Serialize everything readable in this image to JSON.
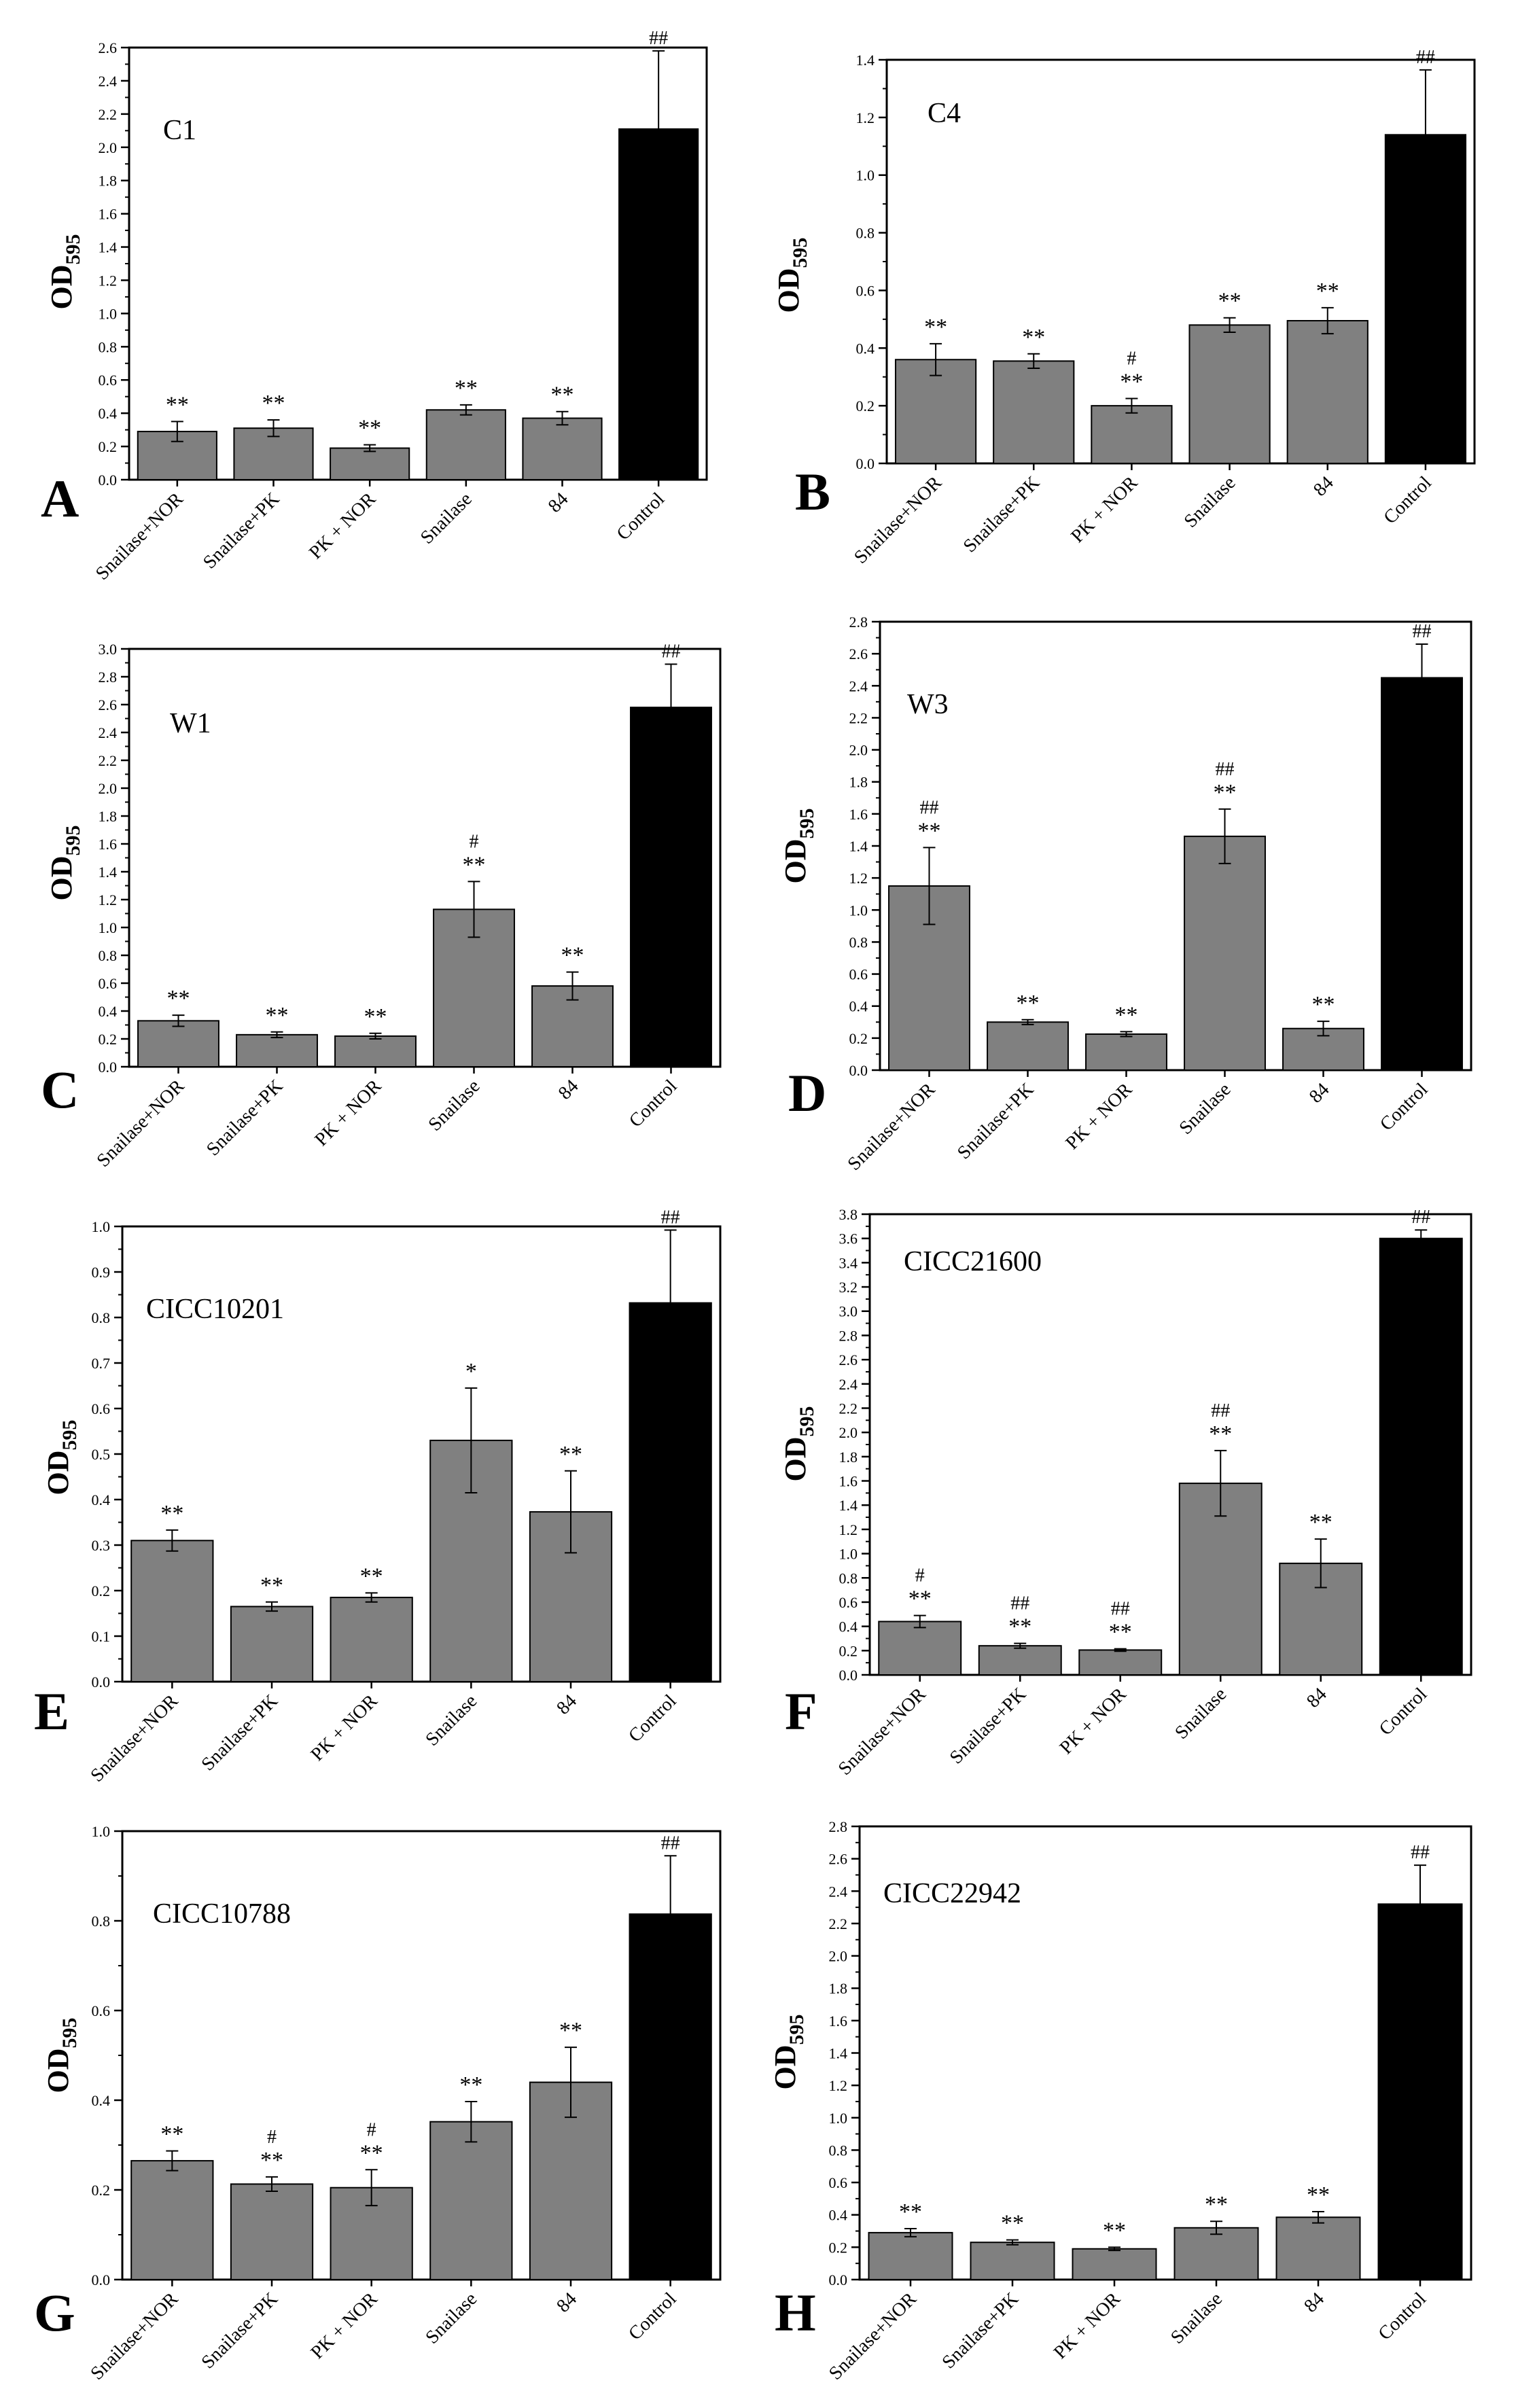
{
  "colors": {
    "treatment": "#808080",
    "control": "#000000",
    "axis": "#000000",
    "background": "#ffffff"
  },
  "chart_data": [
    {
      "panel": "A",
      "type": "bar",
      "title": "C1",
      "ylabel": "OD",
      "ylabel_sub": "595",
      "categories": [
        "Snailase+NOR",
        "Snailase+PK",
        "PK + NOR",
        "Snailase",
        "84",
        "Control"
      ],
      "values": [
        0.29,
        0.31,
        0.19,
        0.42,
        0.37,
        2.11
      ],
      "errors": [
        0.06,
        0.05,
        0.02,
        0.03,
        0.04,
        0.47
      ],
      "sig_upper": [
        "",
        "",
        "",
        "",
        "",
        "##"
      ],
      "sig_lower": [
        "**",
        "**",
        "**",
        "**",
        "**",
        ""
      ],
      "ylim": [
        0,
        2.6
      ],
      "ytick_step": 0.2,
      "ytick_decimals": 1
    },
    {
      "panel": "B",
      "type": "bar",
      "title": "C4",
      "ylabel": "OD",
      "ylabel_sub": "595",
      "categories": [
        "Snailase+NOR",
        "Snailase+PK",
        "PK + NOR",
        "Snailase",
        "84",
        "Control"
      ],
      "values": [
        0.36,
        0.355,
        0.2,
        0.48,
        0.495,
        1.14
      ],
      "errors": [
        0.055,
        0.025,
        0.025,
        0.025,
        0.045,
        0.225
      ],
      "sig_upper": [
        "",
        "",
        "#",
        "",
        "",
        "##"
      ],
      "sig_lower": [
        "**",
        "**",
        "**",
        "**",
        "**",
        ""
      ],
      "ylim": [
        0,
        1.4
      ],
      "ytick_step": 0.2,
      "ytick_decimals": 1
    },
    {
      "panel": "C",
      "type": "bar",
      "title": "W1",
      "ylabel": "OD",
      "ylabel_sub": "595",
      "categories": [
        "Snailase+NOR",
        "Snailase+PK",
        "PK + NOR",
        "Snailase",
        "84",
        "Control"
      ],
      "values": [
        0.33,
        0.23,
        0.22,
        1.13,
        0.58,
        2.58
      ],
      "errors": [
        0.04,
        0.02,
        0.02,
        0.2,
        0.1,
        0.31
      ],
      "sig_upper": [
        "",
        "",
        "",
        "#",
        "",
        "##"
      ],
      "sig_lower": [
        "**",
        "**",
        "**",
        "**",
        "**",
        ""
      ],
      "ylim": [
        0,
        3.0
      ],
      "ytick_step": 0.2,
      "ytick_decimals": 1
    },
    {
      "panel": "D",
      "type": "bar",
      "title": "W3",
      "ylabel": "OD",
      "ylabel_sub": "595",
      "categories": [
        "Snailase+NOR",
        "Snailase+PK",
        "PK + NOR",
        "Snailase",
        "84",
        "Control"
      ],
      "values": [
        1.15,
        0.3,
        0.225,
        1.46,
        0.26,
        2.45
      ],
      "errors": [
        0.24,
        0.015,
        0.015,
        0.17,
        0.045,
        0.21
      ],
      "sig_upper": [
        "##",
        "",
        "",
        "##",
        "",
        "##"
      ],
      "sig_lower": [
        "**",
        "**",
        "**",
        "**",
        "**",
        ""
      ],
      "ylim": [
        0,
        2.8
      ],
      "ytick_step": 0.2,
      "ytick_decimals": 1
    },
    {
      "panel": "E",
      "type": "bar",
      "title": "CICC10201",
      "ylabel": "OD",
      "ylabel_sub": "595",
      "categories": [
        "Snailase+NOR",
        "Snailase+PK",
        "PK + NOR",
        "Snailase",
        "84",
        "Control"
      ],
      "values": [
        0.31,
        0.165,
        0.185,
        0.53,
        0.373,
        0.832
      ],
      "errors": [
        0.023,
        0.01,
        0.01,
        0.115,
        0.09,
        0.16
      ],
      "sig_upper": [
        "",
        "",
        "",
        "",
        "",
        "##"
      ],
      "sig_lower": [
        "**",
        "**",
        "**",
        "*",
        "**",
        ""
      ],
      "ylim": [
        0,
        1.0
      ],
      "ytick_step": 0.1,
      "ytick_decimals": 1
    },
    {
      "panel": "F",
      "type": "bar",
      "title": "CICC21600",
      "ylabel": "OD",
      "ylabel_sub": "595",
      "categories": [
        "Snailase+NOR",
        "Snailase+PK",
        "PK + NOR",
        "Snailase",
        "84",
        "Control"
      ],
      "values": [
        0.44,
        0.24,
        0.205,
        1.58,
        0.92,
        3.6
      ],
      "errors": [
        0.05,
        0.02,
        0.01,
        0.27,
        0.2,
        0.07
      ],
      "sig_upper": [
        "#",
        "##",
        "##",
        "##",
        "",
        "##"
      ],
      "sig_lower": [
        "**",
        "**",
        "**",
        "**",
        "**",
        ""
      ],
      "ylim": [
        0,
        3.8
      ],
      "ytick_step": 0.2,
      "ytick_decimals": 1
    },
    {
      "panel": "G",
      "type": "bar",
      "title": "CICC10788",
      "ylabel": "OD",
      "ylabel_sub": "595",
      "categories": [
        "Snailase+NOR",
        "Snailase+PK",
        "PK + NOR",
        "Snailase",
        "84",
        "Control"
      ],
      "values": [
        0.265,
        0.213,
        0.205,
        0.352,
        0.44,
        0.815
      ],
      "errors": [
        0.022,
        0.016,
        0.04,
        0.045,
        0.078,
        0.13
      ],
      "sig_upper": [
        "",
        "#",
        "#",
        "",
        "",
        "##"
      ],
      "sig_lower": [
        "**",
        "**",
        "**",
        "**",
        "**",
        ""
      ],
      "ylim": [
        0,
        1.0
      ],
      "ytick_step": 0.2,
      "ytick_decimals": 1
    },
    {
      "panel": "H",
      "type": "bar",
      "title": "CICC22942",
      "ylabel": "OD",
      "ylabel_sub": "595",
      "categories": [
        "Snailase+NOR",
        "Snailase+PK",
        "PK + NOR",
        "Snailase",
        "84",
        "Control"
      ],
      "values": [
        0.29,
        0.23,
        0.19,
        0.32,
        0.385,
        2.32
      ],
      "errors": [
        0.025,
        0.015,
        0.01,
        0.04,
        0.035,
        0.24
      ],
      "sig_upper": [
        "",
        "",
        "",
        "",
        "",
        "##"
      ],
      "sig_lower": [
        "**",
        "**",
        "**",
        "**",
        "**",
        ""
      ],
      "ylim": [
        0,
        2.8
      ],
      "ytick_step": 0.2,
      "ytick_decimals": 1
    }
  ]
}
